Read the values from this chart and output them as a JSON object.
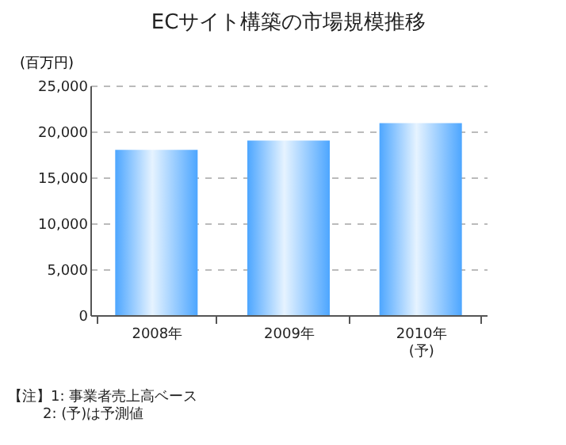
{
  "chart_data": {
    "type": "bar",
    "title": "ECサイト構築の市場規模推移",
    "ylabel": "(百万円)",
    "categories": [
      "2008年",
      "2009年",
      "2010年\n(予)"
    ],
    "values": [
      18000,
      19000,
      20900
    ],
    "color": "#4da6ff",
    "ylim": [
      0,
      25000
    ],
    "yticks": [
      0,
      {
        "value": 5000,
        "label": "5,000"
      },
      {
        "value": 10000,
        "label": "10,000"
      },
      {
        "value": 15000,
        "label": "15,000"
      },
      {
        "value": 20000,
        "label": "20,000"
      },
      {
        "value": 25000,
        "label": "25,000"
      }
    ],
    "grid": "y",
    "annotations": [
      "【注】1: 事業者売上高ベース",
      "2: (予)は予測値"
    ]
  }
}
